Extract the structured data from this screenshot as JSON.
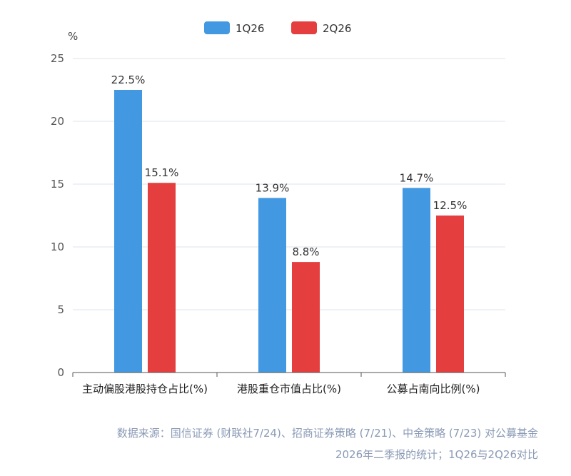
{
  "chart_data": {
    "type": "bar",
    "title": "",
    "xlabel": "",
    "ylabel": "%",
    "ylim": [
      0,
      25
    ],
    "yticks": [
      0,
      5,
      10,
      15,
      20,
      25
    ],
    "grid": true,
    "legend_position": "top-center",
    "categories": [
      "主动偏股港股持仓占比(%)",
      "港股重仓市值占比(%)",
      "公募占南向比例(%)"
    ],
    "series": [
      {
        "name": "1Q26",
        "color": "#4299e1",
        "values": [
          22.5,
          13.9,
          14.7
        ],
        "labels": [
          "22.5%",
          "13.9%",
          "14.7%"
        ]
      },
      {
        "name": "2Q26",
        "color": "#e53e3e",
        "values": [
          15.1,
          8.8,
          12.5
        ],
        "labels": [
          "15.1%",
          "8.8%",
          "12.5%"
        ]
      }
    ]
  },
  "source_note": {
    "line1": "数据来源：国信证券 (财联社7/24)、招商证券策略 (7/21)、中金策略 (7/23) 对公募基金",
    "line2": "2026年二季报的统计；1Q26与2Q26对比"
  }
}
